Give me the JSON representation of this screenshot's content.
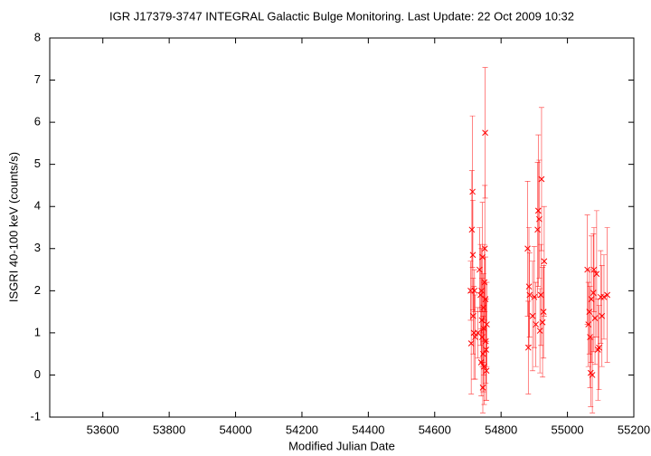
{
  "chart_data": {
    "type": "scatter",
    "title": "IGR J17379-3747   INTEGRAL Galactic Bulge Monitoring.  Last Update: 22 Oct 2009 10:32",
    "xlabel": "Modified Julian Date",
    "ylabel": "ISGRI 40-100 keV (counts/s)",
    "xlim": [
      53440,
      55200
    ],
    "ylim": [
      -1,
      8
    ],
    "xticks": [
      53600,
      53800,
      54000,
      54200,
      54400,
      54600,
      54800,
      55000,
      55200
    ],
    "yticks": [
      -1,
      0,
      1,
      2,
      3,
      4,
      5,
      6,
      7,
      8
    ],
    "series": [
      {
        "color": "#ff0000",
        "x": [
          54708,
          54710,
          54712,
          54714,
          54715,
          54716,
          54718,
          54720,
          54722,
          54730,
          54735,
          54738,
          54740,
          54741,
          54742,
          54743,
          54744,
          54745,
          54746,
          54747,
          54748,
          54749,
          54750,
          54751,
          54752,
          54753,
          54754,
          54755,
          54756,
          54757,
          54880,
          54882,
          54884,
          54886,
          54895,
          54900,
          54905,
          54910,
          54912,
          54915,
          54917,
          54920,
          54922,
          54925,
          54928,
          54930,
          55060,
          55063,
          55066,
          55068,
          55070,
          55072,
          55075,
          55078,
          55080,
          55083,
          55088,
          55092,
          55095,
          55100,
          55104,
          55110,
          55120
        ],
        "values": [
          2.0,
          0.75,
          3.45,
          4.35,
          2.85,
          1.4,
          1.0,
          2.0,
          0.9,
          1.0,
          2.5,
          1.9,
          0.3,
          2.0,
          1.3,
          0.9,
          2.8,
          -0.3,
          0.5,
          1.6,
          1.1,
          0.2,
          2.2,
          3.0,
          5.75,
          1.8,
          0.8,
          0.6,
          0.1,
          1.2,
          3.0,
          0.65,
          2.1,
          1.9,
          1.4,
          1.85,
          1.2,
          3.45,
          3.9,
          3.7,
          1.05,
          1.9,
          4.65,
          1.25,
          1.5,
          2.7,
          2.5,
          1.2,
          1.5,
          0.9,
          0.05,
          1.8,
          0.0,
          1.95,
          2.5,
          1.35,
          2.4,
          0.6,
          0.65,
          1.85,
          1.4,
          1.85,
          1.9
        ],
        "errors": [
          0.7,
          1.2,
          1.4,
          1.8,
          1.3,
          0.9,
          1.1,
          0.5,
          1.0,
          0.6,
          1.0,
          1.2,
          0.8,
          1.0,
          1.0,
          0.7,
          1.3,
          0.6,
          0.9,
          0.8,
          1.1,
          0.9,
          0.9,
          1.5,
          1.55,
          1.0,
          1.0,
          1.2,
          0.7,
          1.0,
          1.6,
          1.1,
          1.4,
          1.0,
          1.3,
          1.2,
          1.0,
          1.6,
          1.8,
          1.4,
          1.0,
          1.2,
          1.7,
          1.3,
          1.1,
          1.3,
          1.3,
          1.0,
          1.0,
          1.2,
          0.8,
          1.5,
          0.9,
          1.4,
          1.0,
          1.1,
          1.5,
          1.2,
          1.0,
          1.1,
          1.2,
          1.0,
          1.6
        ]
      }
    ]
  }
}
